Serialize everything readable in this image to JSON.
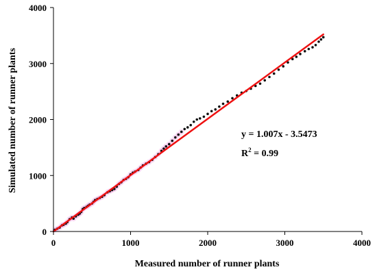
{
  "chart_data": {
    "type": "scatter",
    "xlabel": "Measured number of runner plants",
    "ylabel": "Simulated number of runner plants",
    "xlim": [
      0,
      4000
    ],
    "ylim": [
      0,
      4000
    ],
    "xticks": [
      "0",
      "1000",
      "2000",
      "3000",
      "4000"
    ],
    "yticks": [
      "0",
      "1000",
      "2000",
      "3000",
      "4000"
    ],
    "grid": false,
    "colors": {
      "points": "#111111",
      "fit_line": "#ee1111",
      "halo": "#ee99dd"
    },
    "fit": {
      "slope": 1.007,
      "intercept": -3.5473,
      "x_range": [
        0,
        3500
      ]
    },
    "annotation": {
      "equation": "y = 1.007x - 3.5473",
      "r2_prefix": "R",
      "r2_exp": "2",
      "r2_suffix": " = 0.99"
    },
    "points": [
      [
        20,
        30
      ],
      [
        50,
        50
      ],
      [
        80,
        70
      ],
      [
        110,
        110
      ],
      [
        130,
        120
      ],
      [
        160,
        140
      ],
      [
        180,
        170
      ],
      [
        210,
        220
      ],
      [
        240,
        250
      ],
      [
        260,
        230
      ],
      [
        290,
        270
      ],
      [
        320,
        300
      ],
      [
        340,
        320
      ],
      [
        360,
        350
      ],
      [
        380,
        400
      ],
      [
        400,
        420
      ],
      [
        430,
        440
      ],
      [
        450,
        460
      ],
      [
        470,
        480
      ],
      [
        500,
        500
      ],
      [
        520,
        530
      ],
      [
        540,
        560
      ],
      [
        570,
        580
      ],
      [
        600,
        600
      ],
      [
        630,
        620
      ],
      [
        660,
        650
      ],
      [
        700,
        700
      ],
      [
        730,
        720
      ],
      [
        760,
        740
      ],
      [
        790,
        760
      ],
      [
        820,
        800
      ],
      [
        850,
        850
      ],
      [
        880,
        880
      ],
      [
        910,
        920
      ],
      [
        940,
        940
      ],
      [
        970,
        970
      ],
      [
        1000,
        1020
      ],
      [
        1030,
        1050
      ],
      [
        1060,
        1070
      ],
      [
        1100,
        1100
      ],
      [
        1130,
        1140
      ],
      [
        1160,
        1180
      ],
      [
        1200,
        1210
      ],
      [
        1240,
        1240
      ],
      [
        1280,
        1280
      ],
      [
        1320,
        1330
      ],
      [
        1360,
        1380
      ],
      [
        1400,
        1440
      ],
      [
        1430,
        1480
      ],
      [
        1460,
        1520
      ],
      [
        1500,
        1560
      ],
      [
        1540,
        1620
      ],
      [
        1580,
        1680
      ],
      [
        1620,
        1730
      ],
      [
        1660,
        1780
      ],
      [
        1700,
        1830
      ],
      [
        1740,
        1860
      ],
      [
        1780,
        1900
      ],
      [
        1820,
        1960
      ],
      [
        1860,
        2000
      ],
      [
        1900,
        2020
      ],
      [
        1950,
        2050
      ],
      [
        2000,
        2100
      ],
      [
        2050,
        2150
      ],
      [
        2100,
        2180
      ],
      [
        2150,
        2230
      ],
      [
        2200,
        2280
      ],
      [
        2260,
        2320
      ],
      [
        2320,
        2380
      ],
      [
        2380,
        2430
      ],
      [
        2440,
        2480
      ],
      [
        2500,
        2510
      ],
      [
        2560,
        2550
      ],
      [
        2620,
        2600
      ],
      [
        2680,
        2640
      ],
      [
        2740,
        2700
      ],
      [
        2800,
        2760
      ],
      [
        2860,
        2820
      ],
      [
        2920,
        2890
      ],
      [
        2980,
        2950
      ],
      [
        3040,
        3020
      ],
      [
        3100,
        3080
      ],
      [
        3150,
        3120
      ],
      [
        3200,
        3170
      ],
      [
        3260,
        3220
      ],
      [
        3310,
        3260
      ],
      [
        3360,
        3290
      ],
      [
        3400,
        3330
      ],
      [
        3440,
        3390
      ],
      [
        3470,
        3430
      ],
      [
        3500,
        3470
      ]
    ]
  }
}
